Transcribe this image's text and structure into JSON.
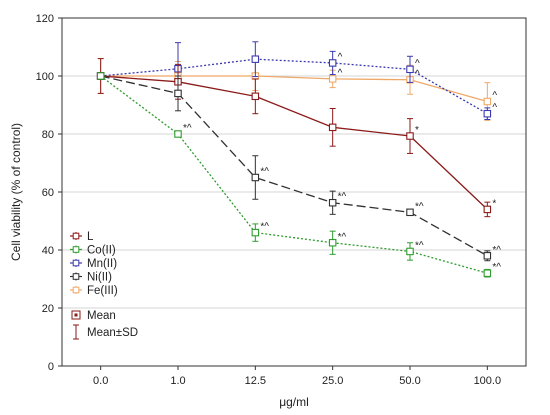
{
  "chart_data": {
    "type": "line",
    "title": "",
    "xlabel": "μg/ml",
    "ylabel": "Cell viability (% of control)",
    "categories": [
      "0.0",
      "1.0",
      "12.5",
      "25.0",
      "50.0",
      "100.0"
    ],
    "ylim": [
      0,
      120
    ],
    "yticks": [
      "0",
      "20",
      "40",
      "60",
      "80",
      "100",
      "120"
    ],
    "grid": true,
    "legend_position": "bottom-left",
    "series": [
      {
        "name": "L",
        "color": "#8b1a1a",
        "dash": "solid",
        "values": [
          100,
          98,
          93,
          82.3,
          79.3,
          54
        ],
        "sd": [
          6,
          6,
          6,
          6.5,
          6,
          2.5
        ],
        "annotations": [
          "",
          "",
          "",
          "",
          "*",
          "*"
        ]
      },
      {
        "name": "Co(II)",
        "color": "#2e9c2e",
        "dash": "dotted",
        "values": [
          100,
          80,
          46,
          42.5,
          39.5,
          32
        ],
        "sd": [
          0,
          0.7,
          3,
          4,
          3,
          1.3
        ],
        "annotations": [
          "",
          "*^",
          "*^",
          "*^",
          "*^",
          "*^"
        ]
      },
      {
        "name": "Mn(II)",
        "color": "#3a3ab0",
        "dash": "dotted",
        "values": [
          100,
          102.5,
          105.8,
          104.5,
          102.3,
          87
        ],
        "sd": [
          0,
          9,
          6,
          4,
          4.5,
          2
        ],
        "annotations": [
          "",
          "",
          "",
          "^",
          "^",
          "^"
        ]
      },
      {
        "name": "Ni(II)",
        "color": "#303030",
        "dash": "dashed",
        "values": [
          100,
          94,
          65,
          56.3,
          53,
          38
        ],
        "sd": [
          0,
          6,
          7.5,
          4,
          1,
          1.7
        ],
        "annotations": [
          "",
          "",
          "*^",
          "*^",
          "*^",
          "*^"
        ]
      },
      {
        "name": "Fe(III)",
        "color": "#f0a868",
        "dash": "solid",
        "values": [
          100,
          100,
          100,
          99,
          98.7,
          91.2
        ],
        "sd": [
          6,
          5,
          5,
          3,
          5,
          6.5
        ],
        "annotations": [
          "",
          "",
          "",
          "^",
          "^",
          "^"
        ]
      }
    ],
    "legend_extra": {
      "mean_label": "Mean",
      "sd_label": "Mean±SD"
    }
  }
}
